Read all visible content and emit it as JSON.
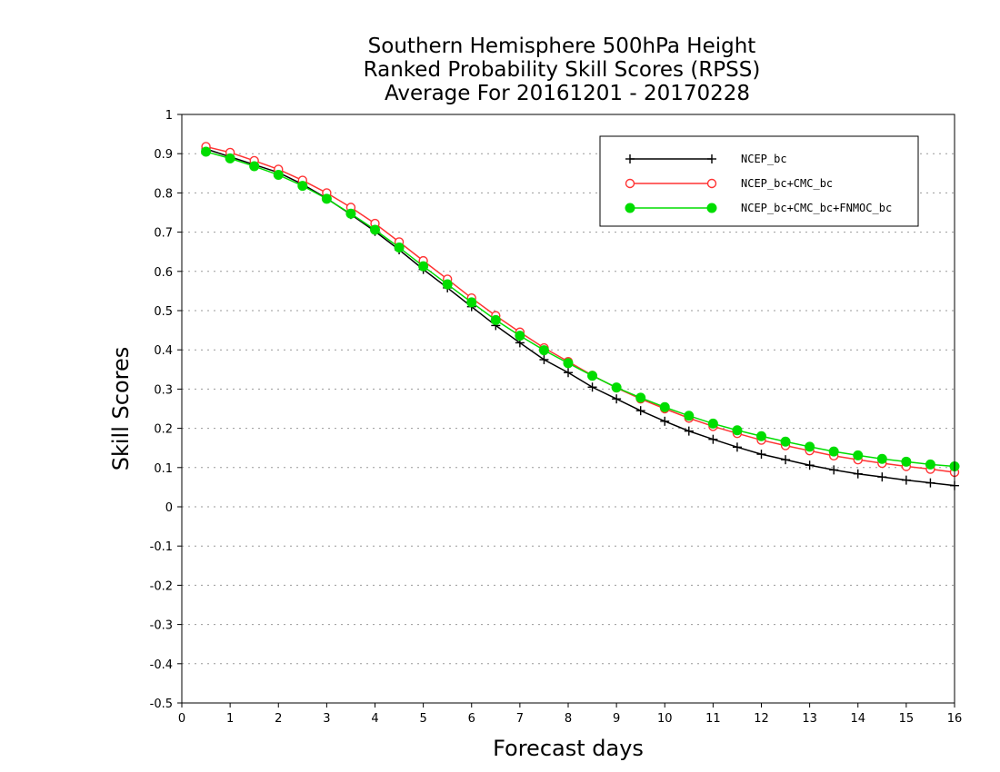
{
  "chart_data": {
    "type": "line",
    "title_lines": [
      "Southern Hemisphere 500hPa Height",
      "Ranked Probability Skill Scores (RPSS)",
      "Average For 20161201 - 20170228"
    ],
    "xlabel": "Forecast days",
    "ylabel": "Skill Scores",
    "xlim": [
      0,
      16
    ],
    "ylim": [
      -0.5,
      1
    ],
    "x_ticks": [
      "0",
      "1",
      "2",
      "3",
      "4",
      "5",
      "6",
      "7",
      "8",
      "9",
      "10",
      "11",
      "12",
      "13",
      "14",
      "15",
      "16"
    ],
    "y_ticks": [
      "1",
      "0.9",
      "0.8",
      "0.7",
      "0.6",
      "0.5",
      "0.4",
      "0.3",
      "0.2",
      "0.1",
      "0",
      "-0.1",
      "-0.2",
      "-0.3",
      "-0.4",
      "-0.5"
    ],
    "grid": "horizontal dotted",
    "legend_position": "top-right",
    "x": [
      0.5,
      1,
      1.5,
      2,
      2.5,
      3,
      3.5,
      4,
      4.5,
      5,
      5.5,
      6,
      6.5,
      7,
      7.5,
      8,
      8.5,
      9,
      9.5,
      10,
      10.5,
      11,
      11.5,
      12,
      12.5,
      13,
      13.5,
      14,
      14.5,
      15,
      15.5,
      16
    ],
    "series": [
      {
        "name": "NCEP_bc",
        "color": "#000000",
        "marker": "plus",
        "values": [
          0.912,
          0.892,
          0.872,
          0.852,
          0.822,
          0.786,
          0.745,
          0.702,
          0.655,
          0.605,
          0.558,
          0.51,
          0.462,
          0.418,
          0.375,
          0.342,
          0.305,
          0.275,
          0.245,
          0.218,
          0.193,
          0.172,
          0.152,
          0.134,
          0.12,
          0.106,
          0.094,
          0.084,
          0.076,
          0.068,
          0.061,
          0.054
        ]
      },
      {
        "name": "NCEP_bc+CMC_bc",
        "color": "#ff3333",
        "marker": "open-circle",
        "values": [
          0.918,
          0.903,
          0.882,
          0.86,
          0.832,
          0.8,
          0.763,
          0.722,
          0.675,
          0.627,
          0.58,
          0.532,
          0.487,
          0.445,
          0.405,
          0.37,
          0.335,
          0.303,
          0.275,
          0.25,
          0.226,
          0.205,
          0.187,
          0.17,
          0.156,
          0.143,
          0.13,
          0.12,
          0.111,
          0.103,
          0.096,
          0.088
        ]
      },
      {
        "name": "NCEP_bc+CMC_bc+FNMOC_bc",
        "color": "#00dd00",
        "marker": "filled-circle",
        "values": [
          0.905,
          0.888,
          0.868,
          0.846,
          0.818,
          0.785,
          0.747,
          0.706,
          0.661,
          0.613,
          0.567,
          0.521,
          0.476,
          0.436,
          0.399,
          0.366,
          0.334,
          0.304,
          0.278,
          0.254,
          0.232,
          0.212,
          0.195,
          0.18,
          0.166,
          0.153,
          0.141,
          0.131,
          0.122,
          0.115,
          0.108,
          0.103
        ]
      }
    ]
  }
}
